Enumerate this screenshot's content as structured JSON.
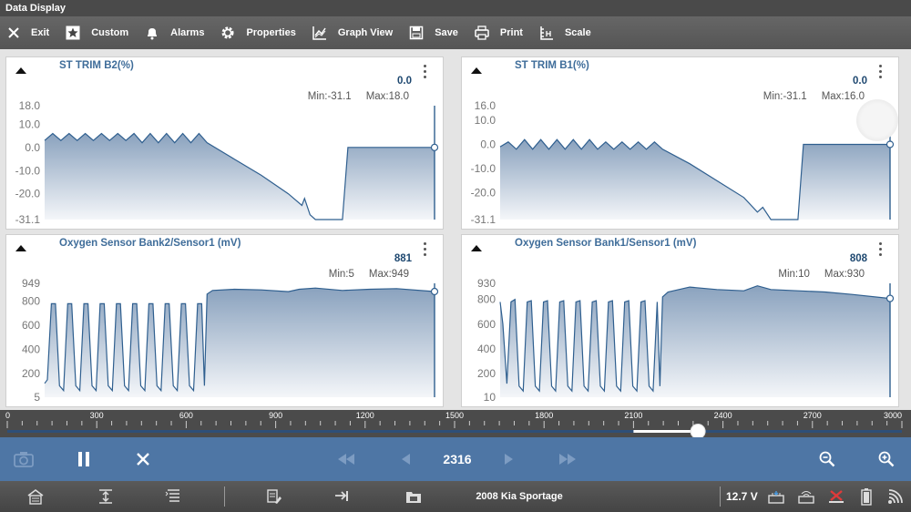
{
  "app": {
    "title": "Data  Display"
  },
  "toolbar": {
    "items": [
      {
        "label": "Exit",
        "icon": "close-icon"
      },
      {
        "label": "Custom",
        "icon": "star-icon"
      },
      {
        "label": "Alarms",
        "icon": "bell-icon"
      },
      {
        "label": "Properties",
        "icon": "gear-icon"
      },
      {
        "label": "Graph View",
        "icon": "graph-view-icon"
      },
      {
        "label": "Save",
        "icon": "floppy-disk-icon"
      },
      {
        "label": "Print",
        "icon": "printer-icon"
      },
      {
        "label": "Scale",
        "icon": "scale-icon"
      }
    ]
  },
  "panels": [
    {
      "title": "ST TRIM B2(%)",
      "value": "0.0",
      "min": "Min:-31.1",
      "max": "Max:18.0",
      "ticks": [
        "18.0",
        "10.0",
        "0.0",
        "-10.0",
        "-20.0",
        "-31.1"
      ]
    },
    {
      "title": "ST TRIM B1(%)",
      "value": "0.0",
      "min": "Min:-31.1",
      "max": "Max:16.0",
      "ticks": [
        "16.0",
        "10.0",
        "0.0",
        "-10.0",
        "-20.0",
        "-31.1"
      ]
    },
    {
      "title": "Oxygen Sensor Bank2/Sensor1 (mV)",
      "value": "881",
      "min": "Min:5",
      "max": "Max:949",
      "ticks": [
        "949",
        "800",
        "600",
        "400",
        "200",
        "5"
      ]
    },
    {
      "title": "Oxygen Sensor Bank1/Sensor1 (mV)",
      "value": "808",
      "min": "Min:10",
      "max": "Max:930",
      "ticks": [
        "930",
        "800",
        "600",
        "400",
        "200",
        "10"
      ]
    }
  ],
  "chart_data": [
    {
      "type": "area",
      "title": "ST TRIM B2(%)",
      "ylim": [
        -31.1,
        18.0
      ],
      "ylabel": "%",
      "x": [
        0,
        30,
        60,
        90,
        120,
        150,
        180,
        210,
        240,
        270,
        300,
        330,
        360,
        390,
        420,
        450,
        480,
        510,
        540,
        570,
        600,
        700,
        800,
        900,
        950,
        960,
        980,
        1000,
        1050,
        1100,
        1120,
        1150,
        1200,
        1300,
        1400,
        1440
      ],
      "y": [
        3,
        6,
        3,
        6,
        3,
        6,
        3,
        6,
        3,
        6,
        3,
        6,
        2,
        6,
        2,
        6,
        2,
        6,
        2,
        6,
        2,
        -5,
        -12,
        -20,
        -25,
        -22,
        -29,
        -31.1,
        -31.1,
        -31.1,
        0,
        0,
        0,
        0,
        0,
        0
      ]
    },
    {
      "type": "area",
      "title": "ST TRIM B1(%)",
      "ylim": [
        -31.1,
        16.0
      ],
      "ylabel": "%",
      "x": [
        0,
        30,
        60,
        90,
        120,
        150,
        180,
        210,
        240,
        270,
        300,
        330,
        360,
        390,
        420,
        450,
        480,
        510,
        540,
        570,
        600,
        700,
        800,
        900,
        950,
        970,
        1000,
        1050,
        1100,
        1120,
        1150,
        1200,
        1300,
        1400,
        1440
      ],
      "y": [
        -1,
        1,
        -2,
        2,
        -2,
        2,
        -2,
        2,
        -2,
        2,
        -2,
        2,
        -2,
        1,
        -2,
        1,
        -2,
        1,
        -2,
        1,
        -2,
        -8,
        -15,
        -22,
        -28,
        -26,
        -31.1,
        -31.1,
        -31.1,
        0,
        0,
        0,
        0,
        0,
        0
      ]
    },
    {
      "type": "area",
      "title": "Oxygen Sensor Bank2/Sensor1 (mV)",
      "ylim": [
        5,
        949
      ],
      "ylabel": "mV",
      "x": [
        0,
        10,
        25,
        40,
        55,
        70,
        85,
        100,
        115,
        130,
        145,
        160,
        175,
        190,
        205,
        220,
        235,
        250,
        265,
        280,
        295,
        310,
        325,
        340,
        355,
        370,
        385,
        400,
        415,
        430,
        445,
        460,
        475,
        490,
        505,
        520,
        535,
        550,
        565,
        580,
        590,
        600,
        620,
        700,
        800,
        900,
        940,
        1000,
        1100,
        1200,
        1300,
        1440
      ],
      "y": [
        120,
        150,
        780,
        780,
        100,
        60,
        780,
        780,
        100,
        60,
        780,
        780,
        100,
        60,
        780,
        780,
        100,
        60,
        780,
        780,
        100,
        60,
        780,
        780,
        100,
        60,
        780,
        780,
        100,
        60,
        780,
        780,
        100,
        60,
        780,
        780,
        100,
        60,
        780,
        780,
        100,
        860,
        890,
        900,
        895,
        880,
        900,
        910,
        890,
        900,
        905,
        881
      ]
    },
    {
      "type": "area",
      "title": "Oxygen Sensor Bank1/Sensor1 (mV)",
      "ylim": [
        10,
        930
      ],
      "ylabel": "mV",
      "x": [
        0,
        10,
        25,
        40,
        55,
        70,
        85,
        100,
        115,
        130,
        145,
        160,
        175,
        190,
        205,
        220,
        235,
        250,
        265,
        280,
        295,
        310,
        325,
        340,
        355,
        370,
        385,
        400,
        415,
        430,
        445,
        460,
        475,
        490,
        505,
        520,
        535,
        550,
        565,
        580,
        590,
        600,
        620,
        700,
        800,
        900,
        950,
        1000,
        1100,
        1200,
        1300,
        1440
      ],
      "y": [
        780,
        600,
        120,
        780,
        800,
        100,
        60,
        780,
        790,
        100,
        60,
        780,
        790,
        100,
        60,
        780,
        790,
        100,
        60,
        780,
        790,
        100,
        60,
        780,
        790,
        100,
        60,
        780,
        790,
        100,
        60,
        780,
        790,
        100,
        60,
        780,
        790,
        100,
        60,
        780,
        100,
        820,
        860,
        900,
        880,
        870,
        910,
        880,
        870,
        860,
        840,
        808
      ]
    }
  ],
  "timeline": {
    "labels": [
      "0",
      "300",
      "600",
      "900",
      "1200",
      "1500",
      "1800",
      "2100",
      "2400",
      "2700",
      "3000"
    ],
    "max": 3000,
    "position": 2316,
    "window_start": 2100
  },
  "playback": {
    "frame": "2316",
    "icons": [
      "camera-icon",
      "pause-icon",
      "close-icon",
      "rewind-icon",
      "step-back-icon",
      "step-forward-icon",
      "fast-forward-icon",
      "zoom-out-icon",
      "zoom-in-icon"
    ]
  },
  "statusbar": {
    "vehicle": "2008 Kia Sportage",
    "voltage": "12.7 V",
    "accent": "#4e76a5"
  }
}
